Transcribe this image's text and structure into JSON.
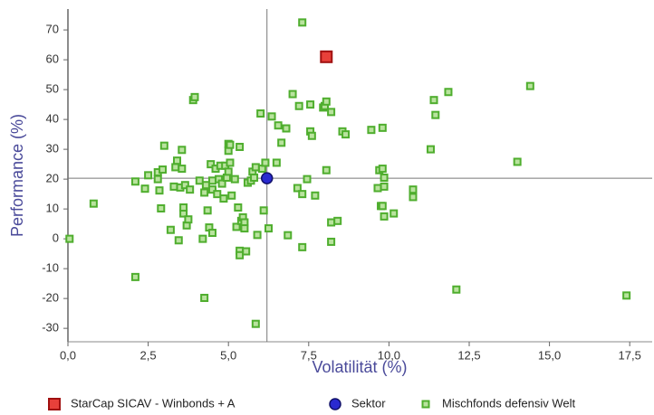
{
  "chart_data": {
    "type": "scatter",
    "xlabel": "Volatilität (%)",
    "ylabel": "Performance (%)",
    "xlim": [
      0,
      18.2
    ],
    "ylim": [
      -34.5,
      77
    ],
    "xticks": [
      {
        "value": 0,
        "label": "0,0"
      },
      {
        "value": 2.5,
        "label": "2,5"
      },
      {
        "value": 5,
        "label": "5,0"
      },
      {
        "value": 7.5,
        "label": "7,5"
      },
      {
        "value": 10,
        "label": "10,0"
      },
      {
        "value": 12.5,
        "label": "12,5"
      },
      {
        "value": 15,
        "label": "15,0"
      },
      {
        "value": 17.5,
        "label": "17,5"
      }
    ],
    "yticks": [
      -30,
      -20,
      -10,
      0,
      10,
      20,
      30,
      40,
      50,
      60,
      70
    ],
    "grid": false,
    "legend": "bottom",
    "series": [
      {
        "name": "StarCap SICAV - Winbonds + A",
        "color": "#e8403a",
        "x": [
          8.05
        ],
        "values": [
          61
        ]
      },
      {
        "name": "Sektor",
        "color": "#2a2ad0",
        "x": [
          6.2
        ],
        "values": [
          20.3
        ]
      },
      {
        "name": "Mischfonds defensiv  Welt",
        "color": "#4fae2e",
        "x": [
          0.05,
          0.8,
          2.1,
          2.1,
          2.4,
          2.5,
          2.8,
          2.8,
          2.85,
          2.9,
          2.95,
          3.0,
          3.2,
          3.3,
          3.35,
          3.4,
          3.45,
          3.5,
          3.55,
          3.55,
          3.6,
          3.6,
          3.65,
          3.7,
          3.75,
          3.8,
          3.9,
          3.95,
          4.1,
          4.2,
          4.25,
          4.25,
          4.3,
          4.35,
          4.4,
          4.45,
          4.5,
          4.5,
          4.5,
          4.6,
          4.65,
          4.7,
          4.75,
          4.8,
          4.85,
          4.9,
          4.95,
          5.0,
          5.0,
          5.0,
          5.05,
          5.05,
          5.1,
          5.2,
          5.25,
          5.3,
          5.35,
          5.35,
          5.35,
          5.4,
          5.45,
          5.5,
          5.5,
          5.55,
          5.6,
          5.7,
          5.75,
          5.8,
          5.85,
          5.85,
          5.9,
          6.0,
          6.05,
          6.1,
          6.15,
          6.25,
          6.35,
          6.5,
          6.55,
          6.65,
          6.8,
          6.85,
          7.0,
          7.15,
          7.2,
          7.3,
          7.3,
          7.3,
          7.45,
          7.55,
          7.55,
          7.6,
          7.7,
          7.95,
          8.0,
          8.05,
          8.05,
          8.2,
          8.2,
          8.2,
          8.4,
          8.55,
          8.65,
          9.45,
          9.65,
          9.7,
          9.8,
          9.8,
          9.75,
          9.8,
          9.85,
          9.85,
          9.85,
          10.15,
          10.75,
          10.75,
          11.3,
          11.4,
          11.45,
          11.85,
          12.1,
          14.0,
          14.4,
          17.4
        ],
        "values": [
          0,
          11.8,
          -12.8,
          19.2,
          16.8,
          21.3,
          22.3,
          20,
          16.2,
          10.2,
          23.2,
          31.2,
          3,
          17.5,
          24,
          26.2,
          -0.5,
          17.2,
          23.5,
          29.8,
          8.5,
          10.5,
          18,
          4.5,
          6.5,
          16.5,
          46.5,
          47.5,
          19.5,
          0,
          -19.8,
          15.5,
          18,
          9.5,
          3.8,
          25,
          2,
          16.5,
          19.5,
          23.5,
          15,
          20,
          24.5,
          18.5,
          13.5,
          24.5,
          20.5,
          22.5,
          29.5,
          31.8,
          25.5,
          31.5,
          14.5,
          20,
          4,
          10.5,
          -4,
          -5.5,
          30.8,
          6,
          7.2,
          5.5,
          3.5,
          -4.2,
          18.8,
          19.5,
          22.5,
          20.5,
          -28.5,
          24,
          1.3,
          42,
          23.5,
          9.5,
          25.5,
          3.5,
          41,
          25.5,
          38,
          32.2,
          37,
          1.2,
          48.5,
          17,
          44.5,
          72.5,
          15,
          -2.8,
          20,
          45,
          36,
          34.5,
          14.5,
          44,
          44.5,
          46,
          23,
          42.5,
          5.5,
          -1,
          6,
          36,
          35,
          36.5,
          17,
          23,
          37.2,
          23.5,
          11,
          11,
          7.5,
          20.5,
          17.5,
          8.5,
          16.5,
          14,
          30,
          46.5,
          41.5,
          49.2,
          -17,
          25.8,
          51.2,
          -19
        ]
      }
    ]
  }
}
